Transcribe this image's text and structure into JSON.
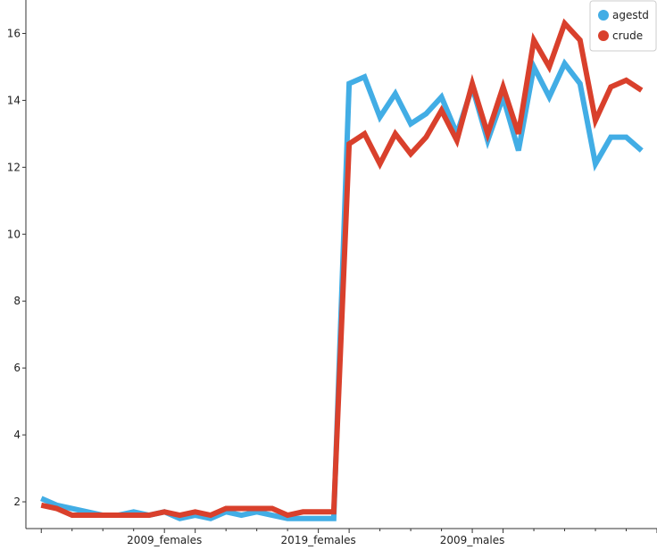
{
  "chart_data": {
    "type": "line",
    "title": "",
    "xlabel": "",
    "ylabel": "",
    "categories_labeled": [
      "2009_females",
      "2019_females",
      "2009_males"
    ],
    "x_tick_label_positions": [
      8,
      18,
      28
    ],
    "x_range": [
      -1,
      40
    ],
    "ylim": [
      1.2,
      17.0
    ],
    "y_ticks": [
      2,
      4,
      6,
      8,
      10,
      12,
      14,
      16
    ],
    "grid": false,
    "legend_position": "top-right",
    "series": [
      {
        "name": "agestd",
        "color": "#42ade5",
        "values": [
          2.1,
          1.9,
          1.8,
          1.7,
          1.6,
          1.6,
          1.7,
          1.6,
          1.7,
          1.5,
          1.6,
          1.5,
          1.7,
          1.6,
          1.7,
          1.6,
          1.5,
          1.5,
          1.5,
          1.5,
          14.5,
          14.7,
          13.5,
          14.2,
          13.3,
          13.6,
          14.1,
          13.0,
          14.4,
          12.8,
          14.1,
          12.5,
          15.0,
          14.1,
          15.1,
          14.5,
          12.1,
          12.9,
          12.9,
          12.5
        ]
      },
      {
        "name": "crude",
        "color": "#d9402c",
        "values": [
          1.9,
          1.8,
          1.6,
          1.6,
          1.6,
          1.6,
          1.6,
          1.6,
          1.7,
          1.6,
          1.7,
          1.6,
          1.8,
          1.8,
          1.8,
          1.8,
          1.6,
          1.7,
          1.7,
          1.7,
          12.7,
          13.0,
          12.1,
          13.0,
          12.4,
          12.9,
          13.7,
          12.8,
          14.5,
          13.0,
          14.4,
          13.0,
          15.8,
          15.0,
          16.3,
          15.8,
          13.4,
          14.4,
          14.6,
          14.3
        ]
      }
    ]
  }
}
